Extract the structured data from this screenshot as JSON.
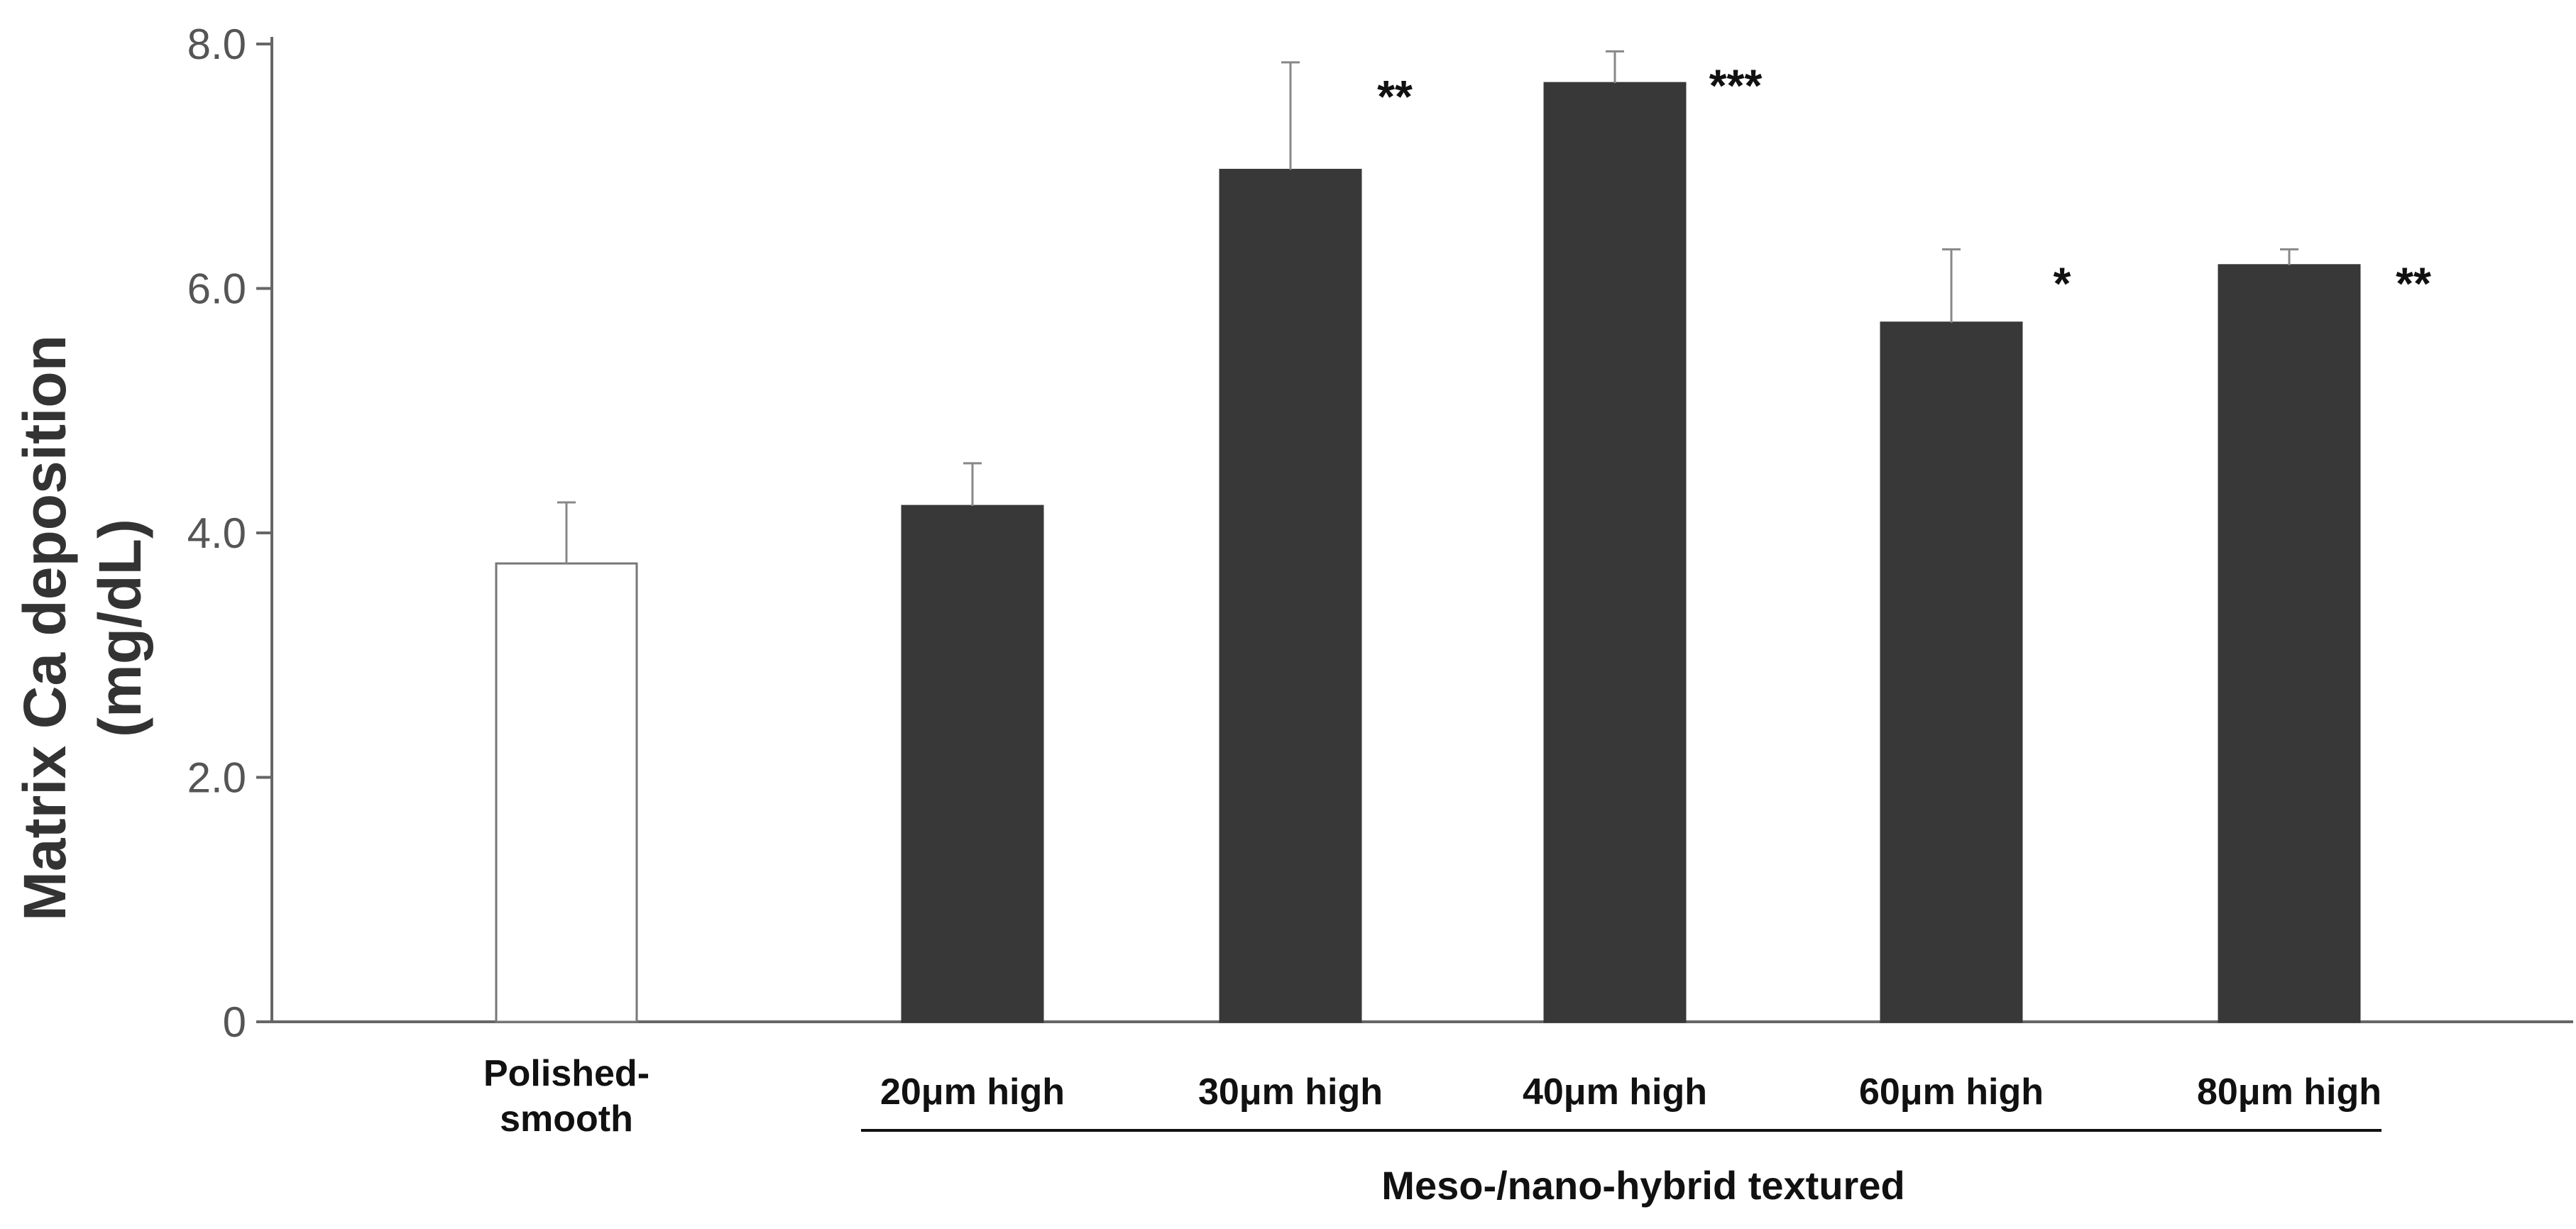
{
  "chart_data": {
    "type": "bar",
    "title": "",
    "ylabel_line1": "Matrix Ca deposition",
    "ylabel_line2": "(mg/dL)",
    "ylim": [
      0,
      8.0
    ],
    "yticks": [
      {
        "value": 0,
        "label": "0"
      },
      {
        "value": 2.0,
        "label": "2.0"
      },
      {
        "value": 4.0,
        "label": "4.0"
      },
      {
        "value": 6.0,
        "label": "6.0"
      },
      {
        "value": 8.0,
        "label": "8.0"
      }
    ],
    "categories": [
      {
        "label": [
          "Polished-",
          "smooth"
        ],
        "value": 3.75,
        "error": 0.5,
        "significance": "",
        "fill": "white"
      },
      {
        "label": [
          "20μm high"
        ],
        "value": 4.22,
        "error": 0.35,
        "significance": "",
        "fill": "dark"
      },
      {
        "label": [
          "30μm high"
        ],
        "value": 6.97,
        "error": 0.88,
        "significance": "**",
        "fill": "dark"
      },
      {
        "label": [
          "40μm high"
        ],
        "value": 7.68,
        "error": 0.26,
        "significance": "***",
        "fill": "dark"
      },
      {
        "label": [
          "60μm high"
        ],
        "value": 5.72,
        "error": 0.6,
        "significance": "*",
        "fill": "dark"
      },
      {
        "label": [
          "80μm high"
        ],
        "value": 6.19,
        "error": 0.13,
        "significance": "**",
        "fill": "dark"
      }
    ],
    "group_label": "Meso-/nano-hybrid textured",
    "grid": false,
    "legend": "none"
  },
  "colors": {
    "dark_bar": "#383838",
    "light_bar": "#ffffff",
    "bar_stroke": "#777777",
    "axis": "#666666",
    "error_bar": "#888888"
  }
}
